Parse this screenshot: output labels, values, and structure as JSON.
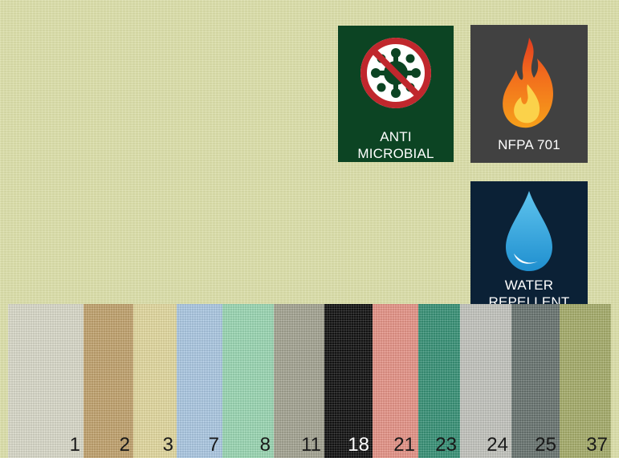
{
  "badges": {
    "anti_microbial": {
      "line1": "ANTI",
      "line2": "MICROBIAL",
      "bg": "#0c4423",
      "icon": "no-germ-icon"
    },
    "nfpa": {
      "label": "NFPA 701",
      "bg": "#414141",
      "icon": "flame-icon"
    },
    "water": {
      "line1": "WATER",
      "line2": "REPELLENT",
      "bg": "#0b2136",
      "icon": "water-drop-icon"
    }
  },
  "fabric_color": "#dcdfaa",
  "swatches": [
    {
      "number": "1",
      "color": "#dcdccc"
    },
    {
      "number": "2",
      "color": "#c4a570"
    },
    {
      "number": "3",
      "color": "#e6dca2"
    },
    {
      "number": "7",
      "color": "#aecbe6"
    },
    {
      "number": "8",
      "color": "#9ddab6"
    },
    {
      "number": "11",
      "color": "#a7a795"
    },
    {
      "number": "18",
      "color": "#141414"
    },
    {
      "number": "21",
      "color": "#e9968a"
    },
    {
      "number": "23",
      "color": "#3a9479"
    },
    {
      "number": "24",
      "color": "#c6c7c1"
    },
    {
      "number": "25",
      "color": "#6b7773"
    },
    {
      "number": "37",
      "color": "#a8af6d"
    }
  ]
}
